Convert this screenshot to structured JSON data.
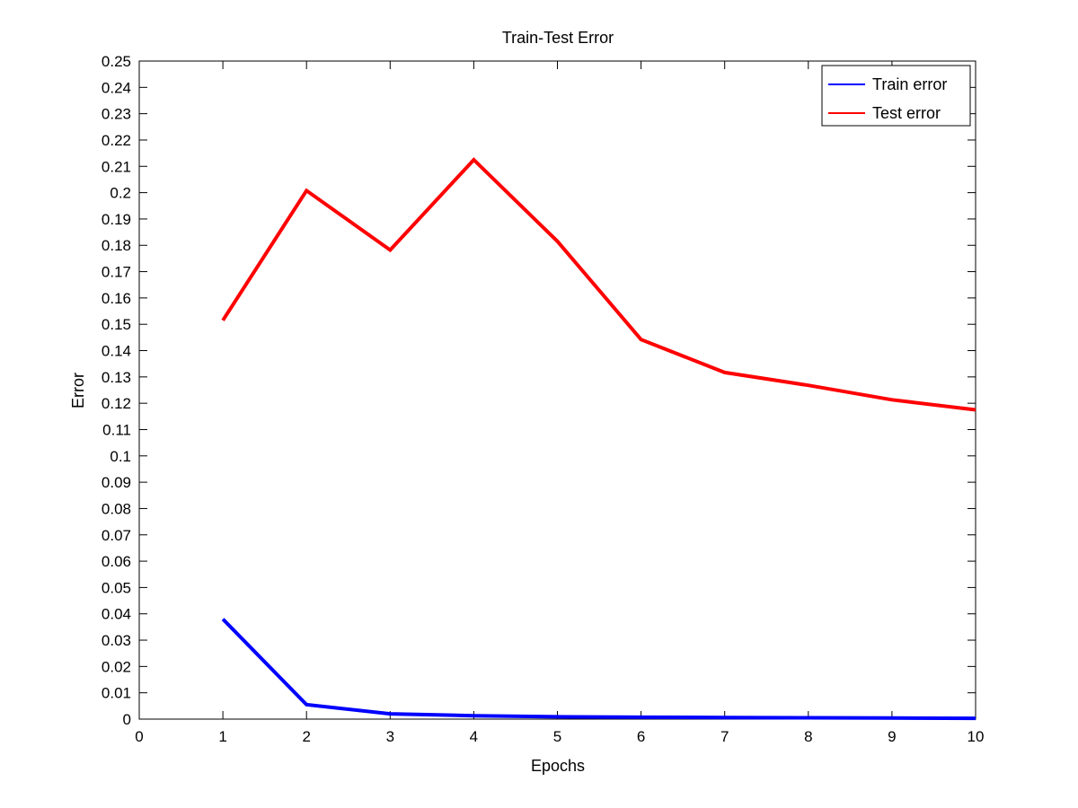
{
  "chart_data": {
    "type": "line",
    "title": "Train-Test Error",
    "xlabel": "Epochs",
    "ylabel": "Error",
    "xlim": [
      0,
      10
    ],
    "ylim": [
      0,
      0.25
    ],
    "xticks": [
      "0",
      "1",
      "2",
      "3",
      "4",
      "5",
      "6",
      "7",
      "8",
      "9",
      "10"
    ],
    "yticks": [
      "0",
      "0.01",
      "0.02",
      "0.03",
      "0.04",
      "0.05",
      "0.06",
      "0.07",
      "0.08",
      "0.09",
      "0.1",
      "0.11",
      "0.12",
      "0.13",
      "0.14",
      "0.15",
      "0.16",
      "0.17",
      "0.18",
      "0.19",
      "0.2",
      "0.21",
      "0.22",
      "0.23",
      "0.24",
      "0.25"
    ],
    "grid": false,
    "legend_position": "top-right",
    "x": [
      1,
      2,
      3,
      4,
      5,
      6,
      7,
      8,
      9,
      10
    ],
    "series": [
      {
        "name": "Train error",
        "color": "#0000ff",
        "values": [
          0.038,
          0.0055,
          0.002,
          0.0013,
          0.0009,
          0.0007,
          0.0006,
          0.0005,
          0.0004,
          0.0003
        ]
      },
      {
        "name": "Test error",
        "color": "#ff0000",
        "values": [
          0.1515,
          0.2008,
          0.1782,
          0.2125,
          0.1815,
          0.1442,
          0.1317,
          0.1268,
          0.1213,
          0.1175
        ]
      }
    ]
  }
}
